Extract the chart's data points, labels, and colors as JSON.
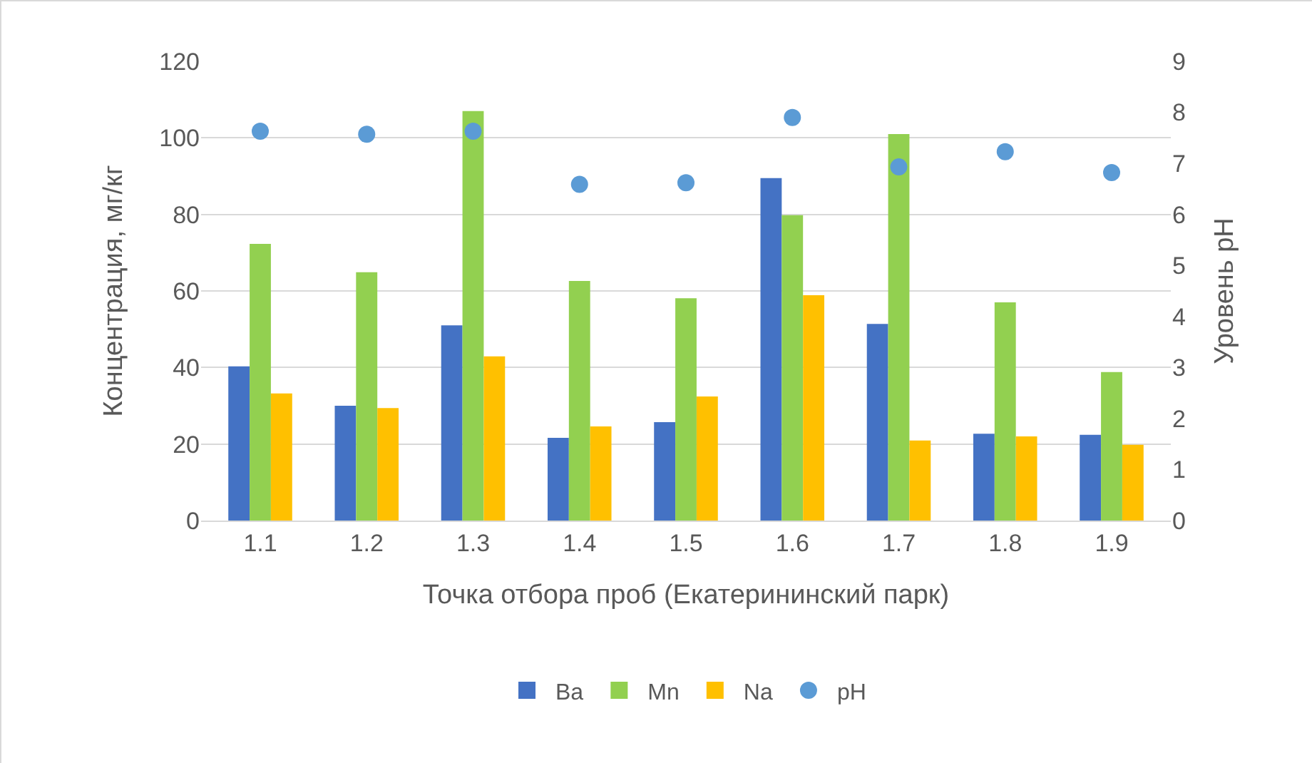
{
  "chart_data": {
    "type": "bar",
    "xlabel": "Точка отбора проб (Екатерининский парк)",
    "ylabel": "Концентрация, мг/кг",
    "y2label": "Уровень pH",
    "categories": [
      "1.1",
      "1.2",
      "1.3",
      "1.4",
      "1.5",
      "1.6",
      "1.7",
      "1.8",
      "1.9"
    ],
    "series": [
      {
        "name": "Ba",
        "color": "#4472c4",
        "values": [
          40.3,
          30,
          51,
          21.6,
          25.7,
          89.5,
          51.4,
          22.7,
          22.4
        ]
      },
      {
        "name": "Mn",
        "color": "#92d050",
        "values": [
          72.3,
          64.9,
          107,
          62.6,
          58.1,
          79.8,
          101,
          57,
          38.8
        ]
      },
      {
        "name": "Na",
        "color": "#ffc000",
        "values": [
          33.2,
          29.4,
          42.9,
          24.6,
          32.4,
          58.9,
          20.9,
          22,
          19.8
        ]
      },
      {
        "name": "pH",
        "type": "scatter",
        "axis": "y2",
        "marker": "circle",
        "color": "#5b9bd5",
        "values": [
          7.63,
          7.57,
          7.63,
          6.59,
          6.62,
          7.9,
          6.93,
          7.23,
          6.82
        ]
      }
    ],
    "ylim": [
      0,
      120
    ],
    "yticks": [
      0,
      20,
      40,
      60,
      80,
      100,
      120
    ],
    "y2lim": [
      0,
      9
    ],
    "y2ticks": [
      0,
      1,
      2,
      3,
      4,
      5,
      6,
      7,
      8,
      9
    ],
    "grid": "y",
    "legend": "bottom"
  }
}
